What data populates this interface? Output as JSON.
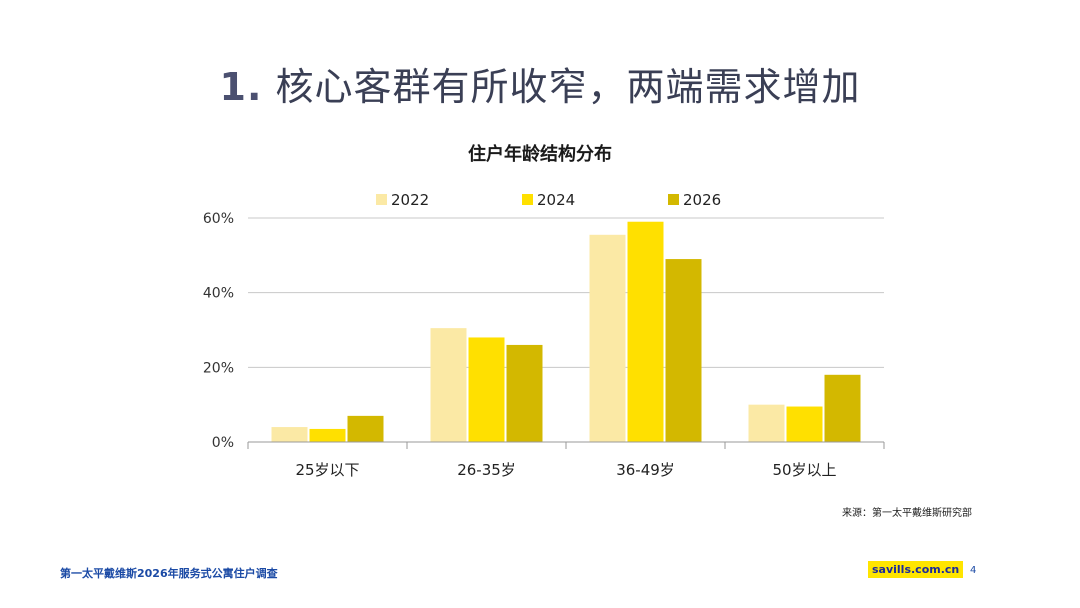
{
  "slide": {
    "title_num": "1.",
    "title_text": "核心客群有所收窄，两端需求增加"
  },
  "chart_data": {
    "type": "bar",
    "title": "住户年龄结构分布",
    "categories": [
      "25岁以下",
      "26-35岁",
      "36-49岁",
      "50岁以上"
    ],
    "series": [
      {
        "name": "2022",
        "color": "#fbe9a5",
        "values": [
          4,
          30.5,
          55.5,
          10
        ]
      },
      {
        "name": "2024",
        "color": "#ffe000",
        "values": [
          3.5,
          28,
          59,
          9.5
        ]
      },
      {
        "name": "2026",
        "color": "#d3b800",
        "values": [
          7,
          26,
          49,
          18
        ]
      }
    ],
    "ylim": [
      0,
      60
    ],
    "yticks": [
      "0%",
      "20%",
      "40%",
      "60%"
    ],
    "ytick_values": [
      0,
      20,
      40,
      60
    ],
    "grid": true,
    "legend_position": "top"
  },
  "source": "来源：第一太平戴维斯研究部",
  "footer": {
    "report_title": "第一太平戴维斯2026年服务式公寓住户调查",
    "brand": "savills.com.cn",
    "page_number": "4"
  }
}
